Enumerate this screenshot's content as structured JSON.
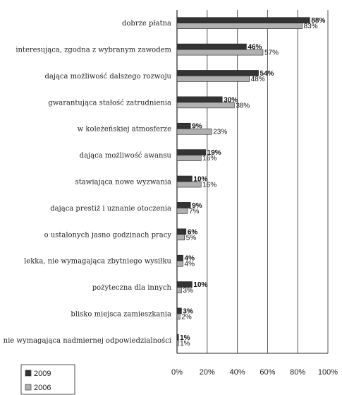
{
  "chart_data": {
    "type": "bar",
    "orientation": "horizontal",
    "categories": [
      "dobrze płatna",
      "interesująca, zgodna z wybranym zawodem",
      "dająca możliwość dalszego rozwoju",
      "gwarantująca stałość zatrudnienia",
      "w koleżeńskiej atmosferze",
      "dająca możliwość awansu",
      "stawiająca nowe wyzwania",
      "dająca prestiż i uznanie otoczenia",
      "o ustalonych jasno godzinach pracy",
      "lekka, nie wymagająca zbytniego wysiłku",
      "pożyteczna dla innych",
      "blisko miejsca zamieszkania",
      "nie wymagająca nadmiernej odpowiedzialności"
    ],
    "series": [
      {
        "name": "2009",
        "color": "#333333",
        "values": [
          88,
          46,
          54,
          30,
          9,
          19,
          10,
          9,
          6,
          4,
          10,
          3,
          1
        ]
      },
      {
        "name": "2006",
        "color": "#b0b0b0",
        "values": [
          83,
          57,
          48,
          38,
          23,
          16,
          16,
          7,
          5,
          4,
          3,
          2,
          1
        ]
      }
    ],
    "value_suffix": "%",
    "xlim": [
      0,
      100
    ],
    "xticks": [
      "0%",
      "20%",
      "40%",
      "60%",
      "80%",
      "100%"
    ],
    "grid": "vertical",
    "legend_position": "bottom-left"
  }
}
